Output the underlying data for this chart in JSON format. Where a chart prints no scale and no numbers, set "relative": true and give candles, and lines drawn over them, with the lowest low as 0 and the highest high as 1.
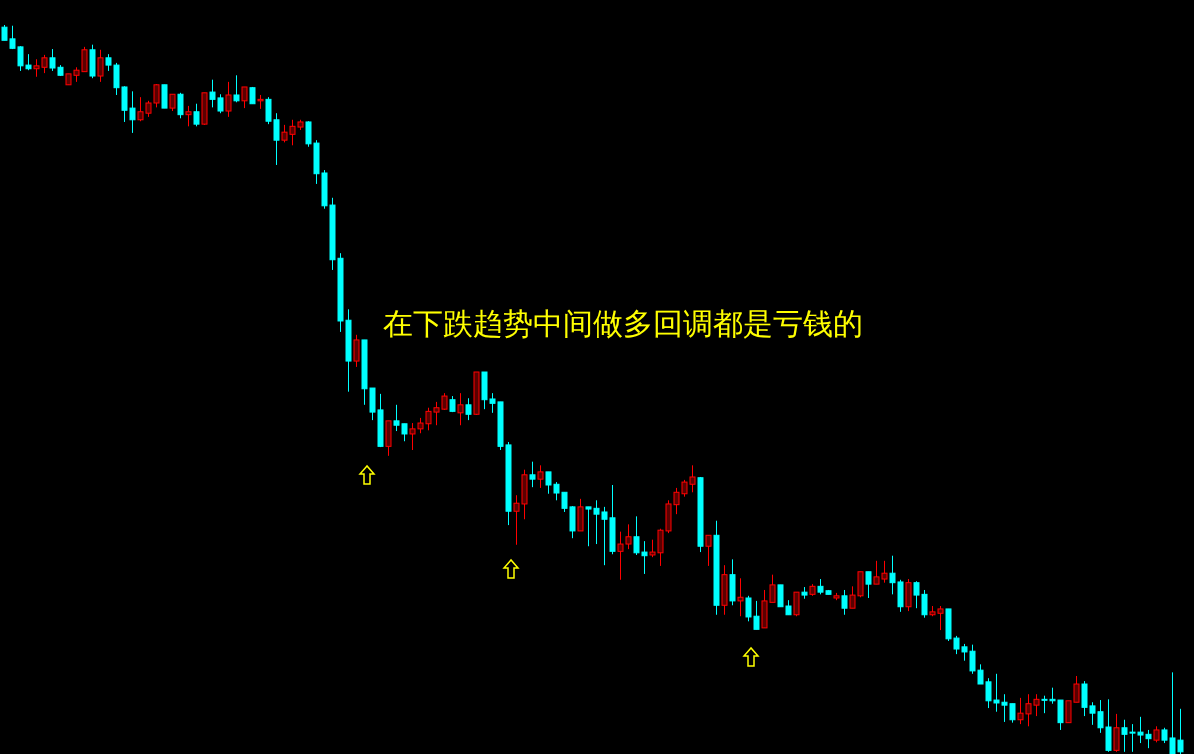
{
  "chart_data": {
    "type": "candlestick",
    "title": "在下跌趋势中间做多回调都是亏钱的",
    "relative": true,
    "categories": [
      null,
      null,
      null,
      null,
      null,
      null,
      null,
      null,
      null,
      null,
      null,
      null,
      null,
      null,
      null,
      null,
      null,
      null,
      null,
      null,
      null,
      null,
      null,
      null,
      null,
      null,
      null,
      null,
      null,
      null,
      null,
      null,
      null,
      null,
      null,
      null,
      null,
      null,
      null,
      null,
      null,
      null,
      null,
      null,
      null,
      null,
      null,
      null,
      null,
      null,
      null,
      null,
      null,
      null,
      null,
      null,
      null,
      null,
      null,
      null,
      null,
      null,
      null,
      null,
      null,
      null,
      null,
      null,
      null,
      null,
      null,
      null,
      null,
      null,
      null,
      null,
      null,
      null,
      null,
      null,
      null,
      null,
      null,
      null,
      null,
      null,
      null,
      null,
      null,
      null,
      null,
      null,
      null,
      null,
      null,
      null,
      null,
      null,
      null,
      null,
      null,
      null,
      null,
      null,
      null,
      null,
      null,
      null,
      null,
      null,
      null,
      null,
      null,
      null,
      null,
      null,
      null,
      null,
      null,
      null,
      null,
      null,
      null,
      null,
      null,
      null,
      null,
      null,
      null,
      null,
      null,
      null,
      null,
      null,
      null,
      null,
      null,
      null,
      null,
      null,
      null,
      null,
      null,
      null,
      null,
      null,
      null,
      null
    ],
    "ohlc": [
      [
        0.997,
        1,
        0.979,
        0.979
      ],
      [
        0.981,
        0.999,
        0.967,
        0.968
      ],
      [
        0.97,
        0.971,
        0.937,
        0.944
      ],
      [
        0.945,
        0.96,
        0.938,
        0.94
      ],
      [
        0.94,
        0.953,
        0.929,
        0.944
      ],
      [
        0.942,
        0.959,
        0.934,
        0.955
      ],
      [
        0.955,
        0.967,
        0.937,
        0.941
      ],
      [
        0.942,
        0.945,
        0.93,
        0.931
      ],
      [
        0.918,
        0.933,
        0.918,
        0.933
      ],
      [
        0.931,
        0.942,
        0.922,
        0.938
      ],
      [
        0.936,
        0.97,
        0.936,
        0.966
      ],
      [
        0.966,
        0.973,
        0.927,
        0.93
      ],
      [
        0.93,
        0.966,
        0.922,
        0.955
      ],
      [
        0.955,
        0.96,
        0.937,
        0.945
      ],
      [
        0.945,
        0.948,
        0.904,
        0.914
      ],
      [
        0.915,
        0.916,
        0.867,
        0.883
      ],
      [
        0.886,
        0.909,
        0.852,
        0.87
      ],
      [
        0.87,
        0.901,
        0.868,
        0.881
      ],
      [
        0.879,
        0.896,
        0.874,
        0.893
      ],
      [
        0.893,
        0.919,
        0.887,
        0.918
      ],
      [
        0.918,
        0.918,
        0.886,
        0.886
      ],
      [
        0.886,
        0.905,
        0.882,
        0.905
      ],
      [
        0.905,
        0.907,
        0.872,
        0.877
      ],
      [
        0.877,
        0.889,
        0.861,
        0.881
      ],
      [
        0.881,
        0.892,
        0.861,
        0.864
      ],
      [
        0.864,
        0.907,
        0.863,
        0.907
      ],
      [
        0.908,
        0.925,
        0.887,
        0.898
      ],
      [
        0.9,
        0.905,
        0.879,
        0.882
      ],
      [
        0.882,
        0.922,
        0.874,
        0.904
      ],
      [
        0.904,
        0.931,
        0.894,
        0.896
      ],
      [
        0.896,
        0.915,
        0.886,
        0.915
      ],
      [
        0.914,
        0.915,
        0.892,
        0.892
      ],
      [
        0.896,
        0.904,
        0.885,
        0.898
      ],
      [
        0.898,
        0.901,
        0.864,
        0.868
      ],
      [
        0.87,
        0.879,
        0.808,
        0.842
      ],
      [
        0.842,
        0.863,
        0.839,
        0.853
      ],
      [
        0.85,
        0.87,
        0.835,
        0.861
      ],
      [
        0.86,
        0.87,
        0.856,
        0.867
      ],
      [
        0.867,
        0.868,
        0.833,
        0.837
      ],
      [
        0.838,
        0.842,
        0.782,
        0.796
      ],
      [
        0.797,
        0.801,
        0.748,
        0.752
      ],
      [
        0.753,
        0.763,
        0.664,
        0.678
      ],
      [
        0.68,
        0.687,
        0.579,
        0.594
      ],
      [
        0.595,
        0.61,
        0.497,
        0.539
      ],
      [
        0.539,
        0.575,
        0.531,
        0.568
      ],
      [
        0.568,
        0.568,
        0.479,
        0.501
      ],
      [
        0.502,
        0.502,
        0.458,
        0.469
      ],
      [
        0.472,
        0.494,
        0.421,
        0.422
      ],
      [
        0.422,
        0.457,
        0.409,
        0.457
      ],
      [
        0.457,
        0.479,
        0.443,
        0.451
      ],
      [
        0.453,
        0.453,
        0.429,
        0.439
      ],
      [
        0.439,
        0.454,
        0.417,
        0.446
      ],
      [
        0.446,
        0.461,
        0.44,
        0.454
      ],
      [
        0.453,
        0.475,
        0.444,
        0.47
      ],
      [
        0.469,
        0.483,
        0.451,
        0.475
      ],
      [
        0.473,
        0.495,
        0.472,
        0.491
      ],
      [
        0.486,
        0.491,
        0.469,
        0.47
      ],
      [
        0.468,
        0.495,
        0.451,
        0.479
      ],
      [
        0.479,
        0.488,
        0.458,
        0.466
      ],
      [
        0.466,
        0.524,
        0.465,
        0.524
      ],
      [
        0.524,
        0.524,
        0.473,
        0.486
      ],
      [
        0.487,
        0.495,
        0.468,
        0.481
      ],
      [
        0.483,
        0.483,
        0.417,
        0.422
      ],
      [
        0.424,
        0.428,
        0.314,
        0.333
      ],
      [
        0.333,
        0.355,
        0.287,
        0.344
      ],
      [
        0.343,
        0.39,
        0.322,
        0.383
      ],
      [
        0.383,
        0.401,
        0.366,
        0.377
      ],
      [
        0.377,
        0.396,
        0.365,
        0.387
      ],
      [
        0.387,
        0.387,
        0.357,
        0.369
      ],
      [
        0.37,
        0.373,
        0.348,
        0.358
      ],
      [
        0.359,
        0.359,
        0.332,
        0.337
      ],
      [
        0.339,
        0.34,
        0.296,
        0.306
      ],
      [
        0.306,
        0.35,
        0.306,
        0.339
      ],
      [
        0.339,
        0.339,
        0.285,
        0.336
      ],
      [
        0.337,
        0.348,
        0.288,
        0.329
      ],
      [
        0.332,
        0.339,
        0.259,
        0.322
      ],
      [
        0.324,
        0.369,
        0.274,
        0.278
      ],
      [
        0.278,
        0.305,
        0.239,
        0.288
      ],
      [
        0.288,
        0.315,
        0.281,
        0.298
      ],
      [
        0.298,
        0.326,
        0.273,
        0.276
      ],
      [
        0.277,
        0.292,
        0.247,
        0.272
      ],
      [
        0.273,
        0.294,
        0.27,
        0.277
      ],
      [
        0.276,
        0.309,
        0.258,
        0.307
      ],
      [
        0.306,
        0.348,
        0.303,
        0.343
      ],
      [
        0.342,
        0.365,
        0.329,
        0.359
      ],
      [
        0.357,
        0.376,
        0.353,
        0.373
      ],
      [
        0.37,
        0.396,
        0.359,
        0.38
      ],
      [
        0.379,
        0.38,
        0.277,
        0.285
      ],
      [
        0.285,
        0.3,
        0.258,
        0.3
      ],
      [
        0.3,
        0.32,
        0.191,
        0.204
      ],
      [
        0.204,
        0.259,
        0.191,
        0.246
      ],
      [
        0.246,
        0.267,
        0.204,
        0.21
      ],
      [
        0.21,
        0.241,
        0.189,
        0.215
      ],
      [
        0.214,
        0.217,
        0.182,
        0.188
      ],
      [
        0.189,
        0.21,
        0.171,
        0.171
      ],
      [
        0.173,
        0.225,
        0.173,
        0.21
      ],
      [
        0.208,
        0.246,
        0.208,
        0.232
      ],
      [
        0.232,
        0.232,
        0.202,
        0.202
      ],
      [
        0.203,
        0.211,
        0.191,
        0.191
      ],
      [
        0.191,
        0.222,
        0.189,
        0.222
      ],
      [
        0.222,
        0.229,
        0.213,
        0.218
      ],
      [
        0.219,
        0.233,
        0.217,
        0.23
      ],
      [
        0.23,
        0.24,
        0.219,
        0.222
      ],
      [
        0.224,
        0.225,
        0.219,
        0.219
      ],
      [
        0.214,
        0.221,
        0.211,
        0.217
      ],
      [
        0.217,
        0.225,
        0.191,
        0.2
      ],
      [
        0.2,
        0.23,
        0.2,
        0.218
      ],
      [
        0.217,
        0.25,
        0.215,
        0.25
      ],
      [
        0.25,
        0.25,
        0.214,
        0.233
      ],
      [
        0.233,
        0.265,
        0.233,
        0.243
      ],
      [
        0.24,
        0.265,
        0.235,
        0.248
      ],
      [
        0.248,
        0.272,
        0.219,
        0.235
      ],
      [
        0.236,
        0.239,
        0.195,
        0.202
      ],
      [
        0.202,
        0.24,
        0.196,
        0.235
      ],
      [
        0.235,
        0.237,
        0.2,
        0.218
      ],
      [
        0.219,
        0.225,
        0.187,
        0.191
      ],
      [
        0.191,
        0.203,
        0.189,
        0.195
      ],
      [
        0.193,
        0.203,
        0.17,
        0.199
      ],
      [
        0.199,
        0.199,
        0.155,
        0.158
      ],
      [
        0.159,
        0.162,
        0.137,
        0.144
      ],
      [
        0.147,
        0.151,
        0.128,
        0.14
      ],
      [
        0.141,
        0.15,
        0.11,
        0.114
      ],
      [
        0.115,
        0.123,
        0.096,
        0.096
      ],
      [
        0.099,
        0.104,
        0.063,
        0.073
      ],
      [
        0.074,
        0.11,
        0.058,
        0.07
      ],
      [
        0.071,
        0.082,
        0.044,
        0.067
      ],
      [
        0.069,
        0.069,
        0.043,
        0.047
      ],
      [
        0.047,
        0.077,
        0.041,
        0.056
      ],
      [
        0.055,
        0.082,
        0.038,
        0.069
      ],
      [
        0.067,
        0.082,
        0.052,
        0.075
      ],
      [
        0.075,
        0.08,
        0.056,
        0.074
      ],
      [
        0.075,
        0.091,
        0.069,
        0.073
      ],
      [
        0.074,
        0.074,
        0.033,
        0.043
      ],
      [
        0.043,
        0.073,
        0.043,
        0.073
      ],
      [
        0.071,
        0.107,
        0.071,
        0.096
      ],
      [
        0.096,
        0.1,
        0.052,
        0.064
      ],
      [
        0.066,
        0.071,
        0.04,
        0.056
      ],
      [
        0.058,
        0.074,
        0.029,
        0.036
      ],
      [
        0.037,
        0.075,
        0.003,
        0.005
      ],
      [
        0.005,
        0.055,
        0.003,
        0.036
      ],
      [
        0.036,
        0.047,
        0.003,
        0.027
      ],
      [
        0.03,
        0.041,
        0.003,
        0.029
      ],
      [
        0.03,
        0.051,
        0.015,
        0.026
      ],
      [
        0.027,
        0.033,
        0.008,
        0.021
      ],
      [
        0.019,
        0.038,
        0.016,
        0.033
      ],
      [
        0.033,
        0.036,
        0.015,
        0.019
      ],
      [
        0.022,
        0.112,
        0,
        0
      ],
      [
        0.019,
        0.062,
        0,
        0.003
      ]
    ]
  }
}
